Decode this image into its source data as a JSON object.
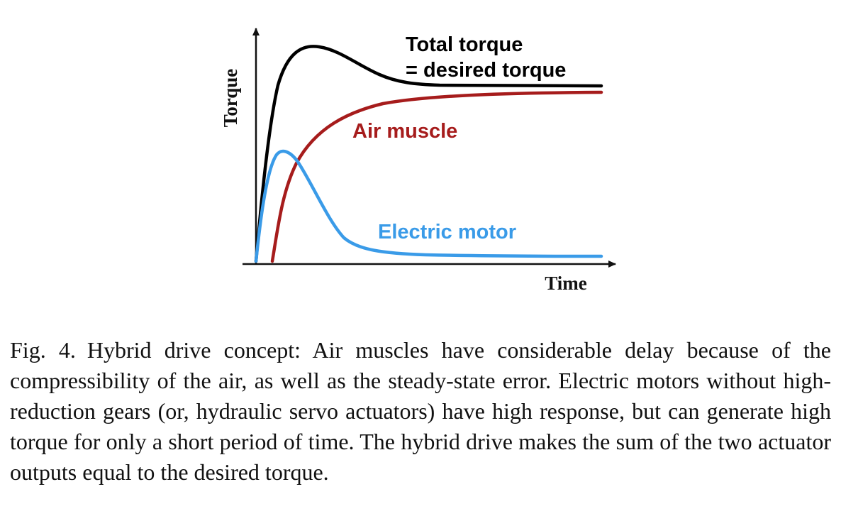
{
  "figure": {
    "axes": {
      "x_label": "Time",
      "y_label": "Torque"
    },
    "curves": {
      "total": {
        "label_line1": "Total torque",
        "label_line2": "= desired torque",
        "color": "#000000"
      },
      "air_muscle": {
        "label": "Air muscle",
        "color": "#A61C1C"
      },
      "electric_motor": {
        "label": "Electric motor",
        "color": "#3A9BE8"
      }
    }
  },
  "caption": {
    "number": "Fig. 4.",
    "text": "Hybrid drive concept: Air muscles have considerable delay because of the compressibility of the air, as well as the steady-state error. Electric motors without high-reduction gears (or, hydraulic servo actuators) have high response, but can generate high torque for only a short period of time. The hybrid drive makes the sum of the two actuator outputs equal to the desired torque."
  }
}
